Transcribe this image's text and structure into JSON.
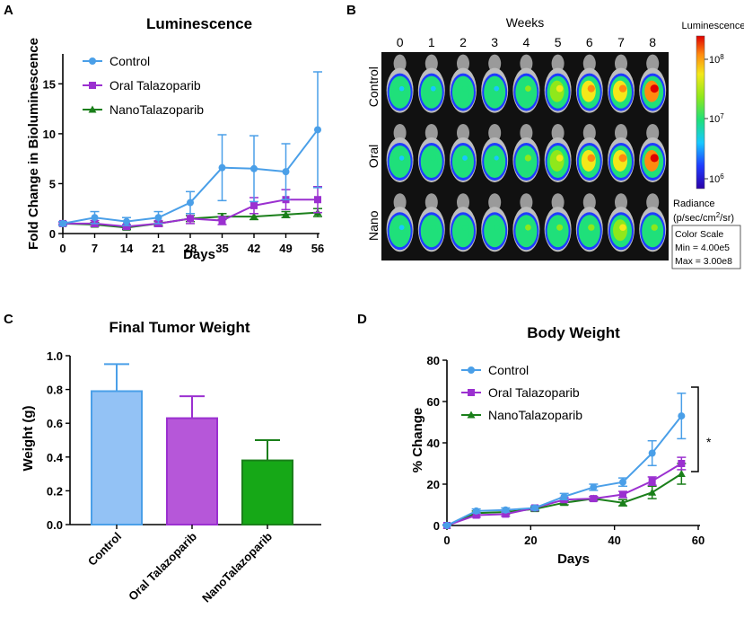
{
  "panel_labels": {
    "a": "A",
    "b": "B",
    "c": "C",
    "d": "D"
  },
  "chart_data": [
    {
      "id": "A",
      "type": "line",
      "title": "Luminescence",
      "xlabel": "Days",
      "ylabel": "Fold Change in Bioluminescence",
      "x": [
        0,
        7,
        14,
        21,
        28,
        35,
        42,
        49,
        56
      ],
      "x_ticks": [
        "0",
        "7",
        "14",
        "21",
        "28",
        "35",
        "42",
        "49",
        "56"
      ],
      "ylim": [
        0,
        18
      ],
      "y_ticks": [
        0,
        5,
        10,
        15
      ],
      "legend_position": "top-left",
      "series": [
        {
          "name": "Control",
          "color": "#4A9FE8",
          "marker": "circle",
          "values": [
            1.0,
            1.6,
            1.2,
            1.6,
            3.1,
            6.6,
            6.5,
            6.2,
            10.4
          ],
          "errors": [
            0.2,
            0.6,
            0.4,
            0.6,
            1.1,
            3.3,
            3.3,
            2.8,
            5.8
          ]
        },
        {
          "name": "Oral Talazoparib",
          "color": "#9B30D0",
          "marker": "square",
          "values": [
            1.0,
            1.0,
            0.7,
            1.0,
            1.5,
            1.3,
            2.8,
            3.4,
            3.4
          ],
          "errors": [
            0.1,
            0.3,
            0.2,
            0.3,
            0.5,
            0.4,
            0.8,
            1.0,
            1.3
          ]
        },
        {
          "name": "NanoTalazoparib",
          "color": "#1A7F1A",
          "marker": "triangle",
          "values": [
            1.0,
            0.9,
            0.6,
            1.0,
            1.5,
            1.7,
            1.7,
            1.9,
            2.1
          ],
          "errors": [
            0.1,
            0.2,
            0.2,
            0.2,
            0.3,
            0.3,
            0.3,
            0.3,
            0.4
          ]
        }
      ]
    },
    {
      "id": "B",
      "type": "heatmap",
      "title": "Weeks",
      "columns": [
        "0",
        "1",
        "2",
        "3",
        "4",
        "5",
        "6",
        "7",
        "8"
      ],
      "rows": [
        "Control",
        "Oral",
        "Nano"
      ],
      "signal": [
        [
          0.25,
          0.3,
          0.35,
          0.28,
          0.45,
          0.62,
          0.7,
          0.72,
          0.85
        ],
        [
          0.25,
          0.4,
          0.3,
          0.2,
          0.55,
          0.6,
          0.75,
          0.8,
          0.85
        ],
        [
          0.3,
          0.35,
          0.38,
          0.35,
          0.45,
          0.5,
          0.55,
          0.6,
          0.55
        ]
      ],
      "colorbar": {
        "title": "Luminescence",
        "ticks": [
          {
            "base": "10",
            "exp": "8"
          },
          {
            "base": "10",
            "exp": "7"
          },
          {
            "base": "10",
            "exp": "6"
          }
        ],
        "radiance_label": "Radiance",
        "radiance_units_pre": "(p/sec/cm",
        "radiance_units_exp": "2",
        "radiance_units_post": "/sr)",
        "scale_title": "Color Scale",
        "min_label": "Min = 4.00e5",
        "max_label": "Max = 3.00e8"
      }
    },
    {
      "id": "C",
      "type": "bar",
      "title": "Final Tumor Weight",
      "xlabel": "",
      "ylabel": "Weight (g)",
      "categories": [
        "Control",
        "Oral Talazoparib",
        "NanoTalazoparib"
      ],
      "values": [
        0.79,
        0.63,
        0.38
      ],
      "errors": [
        0.16,
        0.13,
        0.12
      ],
      "ylim": [
        0,
        1.0
      ],
      "y_ticks": [
        "0.0",
        "0.2",
        "0.4",
        "0.6",
        "0.8",
        "1.0"
      ],
      "fill_colors": [
        "#93C2F5",
        "#B657D9",
        "#16A817"
      ],
      "edge_colors": [
        "#4A9FE8",
        "#9B30D0",
        "#1A7F1A"
      ]
    },
    {
      "id": "D",
      "type": "line",
      "title": "Body Weight",
      "xlabel": "Days",
      "ylabel": "% Change",
      "x": [
        0,
        7,
        14,
        21,
        28,
        35,
        42,
        49,
        56
      ],
      "xlim": [
        0,
        60
      ],
      "x_ticks": [
        0,
        20,
        40,
        60
      ],
      "ylim": [
        0,
        80
      ],
      "y_ticks": [
        0,
        20,
        40,
        60,
        80
      ],
      "legend_position": "top-left",
      "significance": "*",
      "series": [
        {
          "name": "Control",
          "color": "#4A9FE8",
          "marker": "circle",
          "values": [
            0,
            7,
            7.5,
            8.5,
            14,
            18.5,
            21,
            35,
            53
          ],
          "errors": [
            0.5,
            1,
            1,
            1,
            1.5,
            1.5,
            2,
            6,
            11
          ]
        },
        {
          "name": "Oral Talazoparib",
          "color": "#9B30D0",
          "marker": "square",
          "values": [
            0,
            5,
            5.5,
            8.5,
            12.5,
            13,
            15,
            21.5,
            30
          ],
          "errors": [
            0.5,
            1,
            1,
            1,
            1,
            1,
            1.5,
            2,
            3
          ]
        },
        {
          "name": "NanoTalazoparib",
          "color": "#1A7F1A",
          "marker": "triangle",
          "values": [
            0,
            6,
            6.5,
            8,
            11,
            13,
            11,
            16,
            25
          ],
          "errors": [
            0.5,
            1,
            1,
            1,
            1,
            1,
            1.5,
            3,
            5
          ]
        }
      ]
    }
  ]
}
